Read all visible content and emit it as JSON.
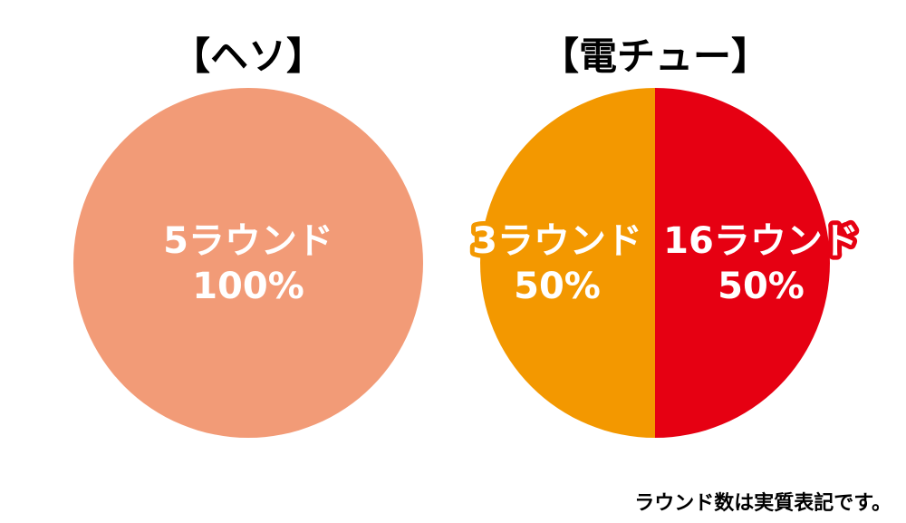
{
  "chart_data": [
    {
      "type": "pie",
      "title": "【ヘソ】",
      "slices": [
        {
          "label": "5ラウンド",
          "value": 100,
          "value_label": "100%",
          "color": "#f29b77",
          "outline": ""
        }
      ]
    },
    {
      "type": "pie",
      "title": "【電チュー】",
      "slices": [
        {
          "label": "3ラウンド",
          "value": 50,
          "value_label": "50%",
          "color": "#f39800",
          "outline": "#f39800"
        },
        {
          "label": "16ラウンド",
          "value": 50,
          "value_label": "50%",
          "color": "#e60012",
          "outline": "#e60012"
        }
      ]
    }
  ],
  "footnote": "ラウンド数は実質表記です。"
}
